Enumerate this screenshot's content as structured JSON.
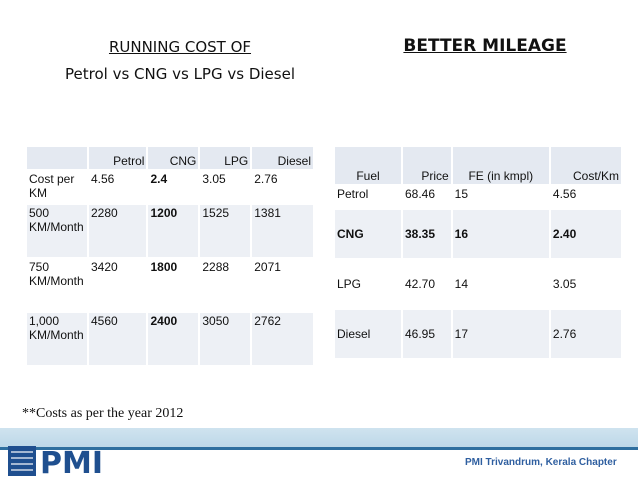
{
  "left_title": {
    "line1": "RUNNING COST OF",
    "line2": "Petrol vs CNG vs LPG vs Diesel"
  },
  "right_title": "BETTER MILEAGE",
  "cost_table": {
    "headers": [
      "",
      "Petrol",
      "CNG",
      "LPG",
      "Diesel"
    ],
    "rows": [
      [
        "Cost per KM",
        "4.56",
        "2.4",
        "3.05",
        "2.76"
      ],
      [
        "500 KM/Month",
        "2280",
        "1200",
        "1525",
        "1381"
      ],
      [
        "750 KM/Month",
        "3420",
        "1800",
        "2288",
        "2071"
      ],
      [
        "1,000 KM/Month",
        "4560",
        "2400",
        "3050",
        "2762"
      ]
    ]
  },
  "mileage_table": {
    "headers": [
      "Fuel",
      "Price",
      "FE (in kmpl)",
      "Cost/Km"
    ],
    "rows": [
      [
        "Petrol",
        "68.46",
        "15",
        "4.56"
      ],
      [
        "CNG",
        "38.35",
        "16",
        "2.40"
      ],
      [
        "LPG",
        "42.70",
        "14",
        "3.05"
      ],
      [
        "Diesel",
        "46.95",
        "17",
        "2.76"
      ]
    ]
  },
  "note": "**Costs as per the year 2012",
  "footer": {
    "logo_text": "PMI",
    "chapter": "PMI Trivandrum, Kerala Chapter"
  },
  "colors": {
    "header_bg": "#e4e9f1",
    "band_blue": "#2f6f9f",
    "logo_blue": "#1f4f8f"
  }
}
